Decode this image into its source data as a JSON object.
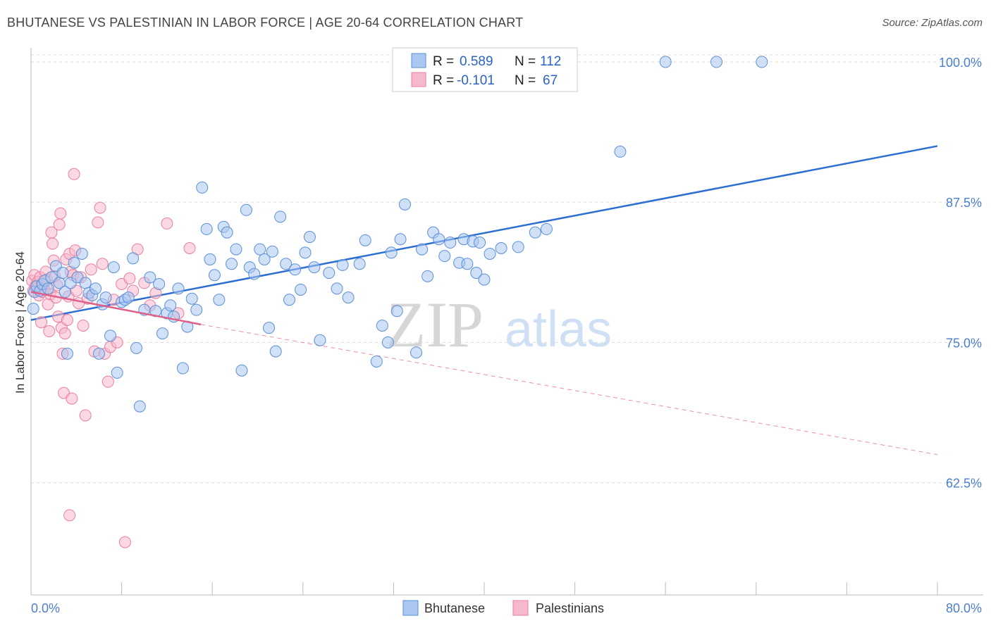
{
  "title": "BHUTANESE VS PALESTINIAN IN LABOR FORCE | AGE 20-64 CORRELATION CHART",
  "source": "Source: ZipAtlas.com",
  "watermark": {
    "zip": "ZIP",
    "atlas": "atlas"
  },
  "colors": {
    "bhutanese_fill": "#a9c7f0",
    "bhutanese_stroke": "#5b8fd6",
    "bhutanese_line": "#2b6fd1",
    "palestinian_fill": "#f7b8cb",
    "palestinian_stroke": "#e87fa0",
    "palestinian_line": "#e0608a",
    "grid": "#dddddd",
    "tick_label": "#4a7fd0"
  },
  "legend": {
    "rows": [
      {
        "r_label": "R =",
        "r_value": "0.589",
        "n_label": "N =",
        "n_value": "112"
      },
      {
        "r_label": "R =",
        "r_value": "-0.101",
        "n_label": "N =",
        "n_value": "67"
      }
    ]
  },
  "chart_data": {
    "type": "scatter",
    "ylabel": "In Labor Force | Age 20-64",
    "x_tick_labels": {
      "min": "0.0%",
      "max": "80.0%"
    },
    "y_tick_labels": [
      "100.0%",
      "87.5%",
      "75.0%",
      "62.5%"
    ],
    "y_ticks": [
      100.0,
      87.5,
      75.0,
      62.5
    ],
    "xlim": [
      0,
      80
    ],
    "ylim": [
      52.5,
      101.5
    ],
    "grid": true,
    "legend_position": "top-center",
    "series": [
      {
        "name": "Bhutanese",
        "trend": {
          "x": [
            0,
            80
          ],
          "y": [
            77.0,
            92.5
          ],
          "style": "solid"
        },
        "points": [
          [
            0.2,
            78.0
          ],
          [
            0.3,
            79.5
          ],
          [
            0.5,
            80.0
          ],
          [
            0.8,
            79.6
          ],
          [
            1.0,
            80.2
          ],
          [
            1.2,
            80.5
          ],
          [
            1.5,
            79.8
          ],
          [
            1.8,
            80.8
          ],
          [
            2.2,
            81.8
          ],
          [
            2.5,
            80.3
          ],
          [
            2.8,
            81.2
          ],
          [
            3.0,
            79.5
          ],
          [
            3.2,
            74.0
          ],
          [
            3.5,
            80.3
          ],
          [
            3.8,
            82.1
          ],
          [
            4.1,
            80.8
          ],
          [
            4.5,
            82.9
          ],
          [
            4.8,
            80.3
          ],
          [
            5.1,
            79.4
          ],
          [
            5.4,
            79.2
          ],
          [
            5.7,
            79.8
          ],
          [
            6.0,
            74.0
          ],
          [
            6.3,
            78.4
          ],
          [
            6.6,
            79.0
          ],
          [
            7.0,
            75.6
          ],
          [
            7.3,
            81.7
          ],
          [
            7.6,
            72.3
          ],
          [
            8.0,
            78.6
          ],
          [
            8.3,
            78.8
          ],
          [
            8.6,
            79.0
          ],
          [
            9.0,
            82.5
          ],
          [
            9.3,
            74.5
          ],
          [
            9.6,
            69.3
          ],
          [
            10.0,
            77.9
          ],
          [
            10.5,
            80.8
          ],
          [
            11.0,
            77.8
          ],
          [
            11.3,
            80.2
          ],
          [
            11.6,
            75.8
          ],
          [
            12.0,
            77.6
          ],
          [
            12.3,
            78.3
          ],
          [
            12.6,
            77.3
          ],
          [
            13.0,
            79.8
          ],
          [
            13.4,
            72.7
          ],
          [
            13.8,
            76.4
          ],
          [
            14.2,
            78.9
          ],
          [
            14.6,
            77.9
          ],
          [
            15.1,
            88.8
          ],
          [
            15.5,
            85.1
          ],
          [
            15.8,
            82.4
          ],
          [
            16.2,
            81.0
          ],
          [
            16.6,
            78.8
          ],
          [
            17.0,
            85.3
          ],
          [
            17.3,
            84.8
          ],
          [
            17.7,
            82.0
          ],
          [
            18.1,
            83.3
          ],
          [
            18.6,
            72.5
          ],
          [
            19.0,
            86.8
          ],
          [
            19.3,
            81.7
          ],
          [
            19.7,
            81.1
          ],
          [
            20.2,
            83.3
          ],
          [
            20.6,
            82.4
          ],
          [
            21.0,
            76.3
          ],
          [
            21.3,
            83.1
          ],
          [
            21.6,
            74.2
          ],
          [
            22.0,
            86.2
          ],
          [
            22.5,
            82.0
          ],
          [
            22.8,
            78.8
          ],
          [
            23.3,
            81.5
          ],
          [
            23.8,
            79.7
          ],
          [
            24.2,
            83.0
          ],
          [
            24.6,
            84.4
          ],
          [
            25.0,
            81.7
          ],
          [
            25.5,
            75.2
          ],
          [
            26.3,
            81.2
          ],
          [
            27.0,
            79.8
          ],
          [
            27.5,
            81.9
          ],
          [
            28.0,
            79.0
          ],
          [
            29.0,
            82.0
          ],
          [
            29.5,
            84.1
          ],
          [
            30.5,
            73.3
          ],
          [
            31.0,
            76.5
          ],
          [
            31.5,
            75.0
          ],
          [
            31.8,
            83.0
          ],
          [
            32.3,
            77.8
          ],
          [
            32.6,
            84.2
          ],
          [
            33.0,
            87.3
          ],
          [
            34.0,
            74.1
          ],
          [
            34.5,
            83.3
          ],
          [
            35.0,
            80.9
          ],
          [
            35.5,
            84.8
          ],
          [
            36.0,
            84.2
          ],
          [
            36.5,
            82.7
          ],
          [
            37.0,
            83.9
          ],
          [
            37.8,
            82.1
          ],
          [
            38.2,
            84.2
          ],
          [
            38.5,
            82.0
          ],
          [
            39.0,
            84.0
          ],
          [
            39.3,
            81.2
          ],
          [
            39.6,
            83.9
          ],
          [
            40.0,
            80.6
          ],
          [
            40.5,
            82.9
          ],
          [
            41.5,
            83.4
          ],
          [
            43.0,
            83.5
          ],
          [
            44.5,
            84.8
          ],
          [
            45.5,
            85.1
          ],
          [
            52.0,
            92.0
          ],
          [
            56.0,
            100.0
          ],
          [
            60.5,
            100.0
          ],
          [
            64.5,
            100.0
          ]
        ]
      },
      {
        "name": "Palestinians",
        "trend": {
          "x": [
            0,
            15
          ],
          "y": [
            79.5,
            76.6
          ],
          "style": "solid"
        },
        "trend_extension": {
          "x": [
            15,
            80
          ],
          "y": [
            76.6,
            65.0
          ],
          "style": "dashed"
        },
        "points": [
          [
            0.1,
            80.5
          ],
          [
            0.2,
            79.6
          ],
          [
            0.3,
            81.0
          ],
          [
            0.4,
            80.0
          ],
          [
            0.5,
            79.8
          ],
          [
            0.6,
            80.4
          ],
          [
            0.7,
            79.2
          ],
          [
            0.8,
            80.8
          ],
          [
            0.9,
            76.8
          ],
          [
            1.0,
            79.5
          ],
          [
            1.1,
            80.2
          ],
          [
            1.2,
            79.7
          ],
          [
            1.3,
            81.3
          ],
          [
            1.4,
            80.6
          ],
          [
            1.5,
            78.4
          ],
          [
            1.6,
            76.0
          ],
          [
            1.7,
            79.3
          ],
          [
            1.8,
            84.8
          ],
          [
            1.9,
            83.8
          ],
          [
            2.0,
            82.3
          ],
          [
            2.1,
            80.9
          ],
          [
            2.2,
            79.0
          ],
          [
            2.3,
            80.1
          ],
          [
            2.4,
            77.3
          ],
          [
            2.5,
            85.5
          ],
          [
            2.6,
            86.5
          ],
          [
            2.7,
            76.3
          ],
          [
            2.8,
            74.0
          ],
          [
            2.9,
            70.5
          ],
          [
            3.0,
            75.8
          ],
          [
            3.1,
            82.4
          ],
          [
            3.2,
            77.0
          ],
          [
            3.3,
            79.1
          ],
          [
            3.4,
            82.9
          ],
          [
            3.5,
            81.3
          ],
          [
            3.6,
            70.0
          ],
          [
            3.7,
            81.0
          ],
          [
            3.8,
            90.0
          ],
          [
            3.9,
            83.2
          ],
          [
            4.0,
            79.6
          ],
          [
            4.2,
            78.5
          ],
          [
            4.4,
            80.8
          ],
          [
            4.6,
            76.5
          ],
          [
            4.8,
            68.5
          ],
          [
            5.0,
            78.9
          ],
          [
            5.3,
            81.5
          ],
          [
            5.6,
            74.2
          ],
          [
            5.9,
            85.7
          ],
          [
            6.1,
            87.0
          ],
          [
            6.3,
            82.0
          ],
          [
            6.5,
            74.0
          ],
          [
            6.8,
            71.5
          ],
          [
            7.0,
            74.6
          ],
          [
            7.3,
            78.8
          ],
          [
            7.6,
            75.0
          ],
          [
            8.0,
            80.2
          ],
          [
            8.3,
            57.2
          ],
          [
            8.7,
            80.7
          ],
          [
            9.0,
            79.6
          ],
          [
            9.4,
            83.3
          ],
          [
            10.0,
            80.3
          ],
          [
            10.5,
            78.3
          ],
          [
            11.0,
            79.4
          ],
          [
            12.0,
            85.6
          ],
          [
            13.0,
            77.6
          ],
          [
            14.0,
            83.4
          ],
          [
            3.4,
            59.6
          ]
        ]
      }
    ]
  },
  "bottom_legend": {
    "items": [
      "Bhutanese",
      "Palestinians"
    ]
  }
}
